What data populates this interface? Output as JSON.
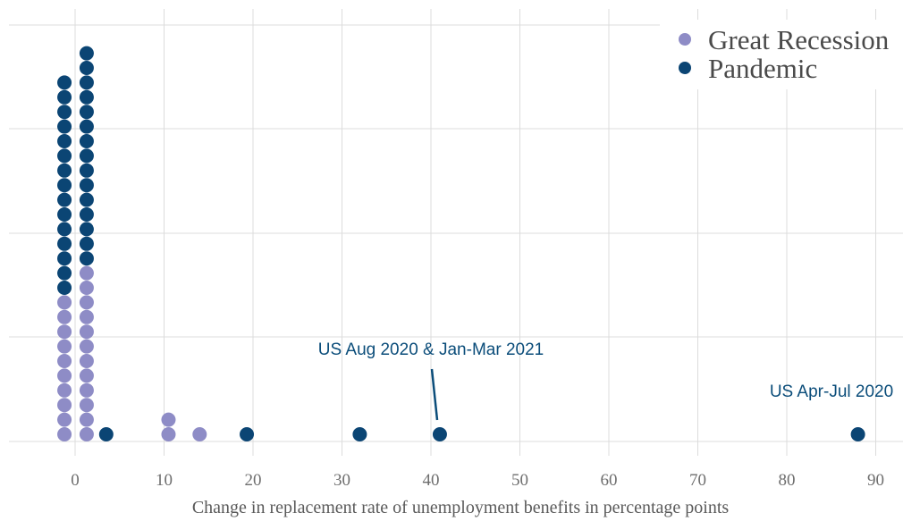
{
  "chart_data": {
    "type": "scatter",
    "subtype": "dot-plot",
    "title": "",
    "xlabel": "Change in replacement rate of unemployment benefits in percentage points",
    "ylabel": "",
    "xlim": [
      -6,
      93
    ],
    "x_ticks": [
      0,
      10,
      20,
      30,
      40,
      50,
      60,
      70,
      80,
      90
    ],
    "grid": true,
    "legend_position": "top-right",
    "series": [
      {
        "name": "Great Recession",
        "color": "#8e8cc6",
        "stacks": [
          {
            "x": -1.2,
            "count": 10
          },
          {
            "x": 1.3,
            "count": 12
          },
          {
            "x": 10.5,
            "count": 2
          },
          {
            "x": 14,
            "count": 1
          }
        ]
      },
      {
        "name": "Pandemic",
        "color": "#0b4574",
        "stacks": [
          {
            "x": -1.2,
            "count": 15
          },
          {
            "x": 1.3,
            "count": 15
          },
          {
            "x": 3.5,
            "count": 1
          },
          {
            "x": 19.3,
            "count": 1
          },
          {
            "x": 32,
            "count": 1
          },
          {
            "x": 41,
            "count": 1
          },
          {
            "x": 88,
            "count": 1
          }
        ]
      }
    ],
    "annotations": [
      {
        "text": "US Aug 2020 & Jan-Mar 2021",
        "x": 41
      },
      {
        "text": "US Apr-Jul 2020",
        "x": 88
      }
    ]
  }
}
